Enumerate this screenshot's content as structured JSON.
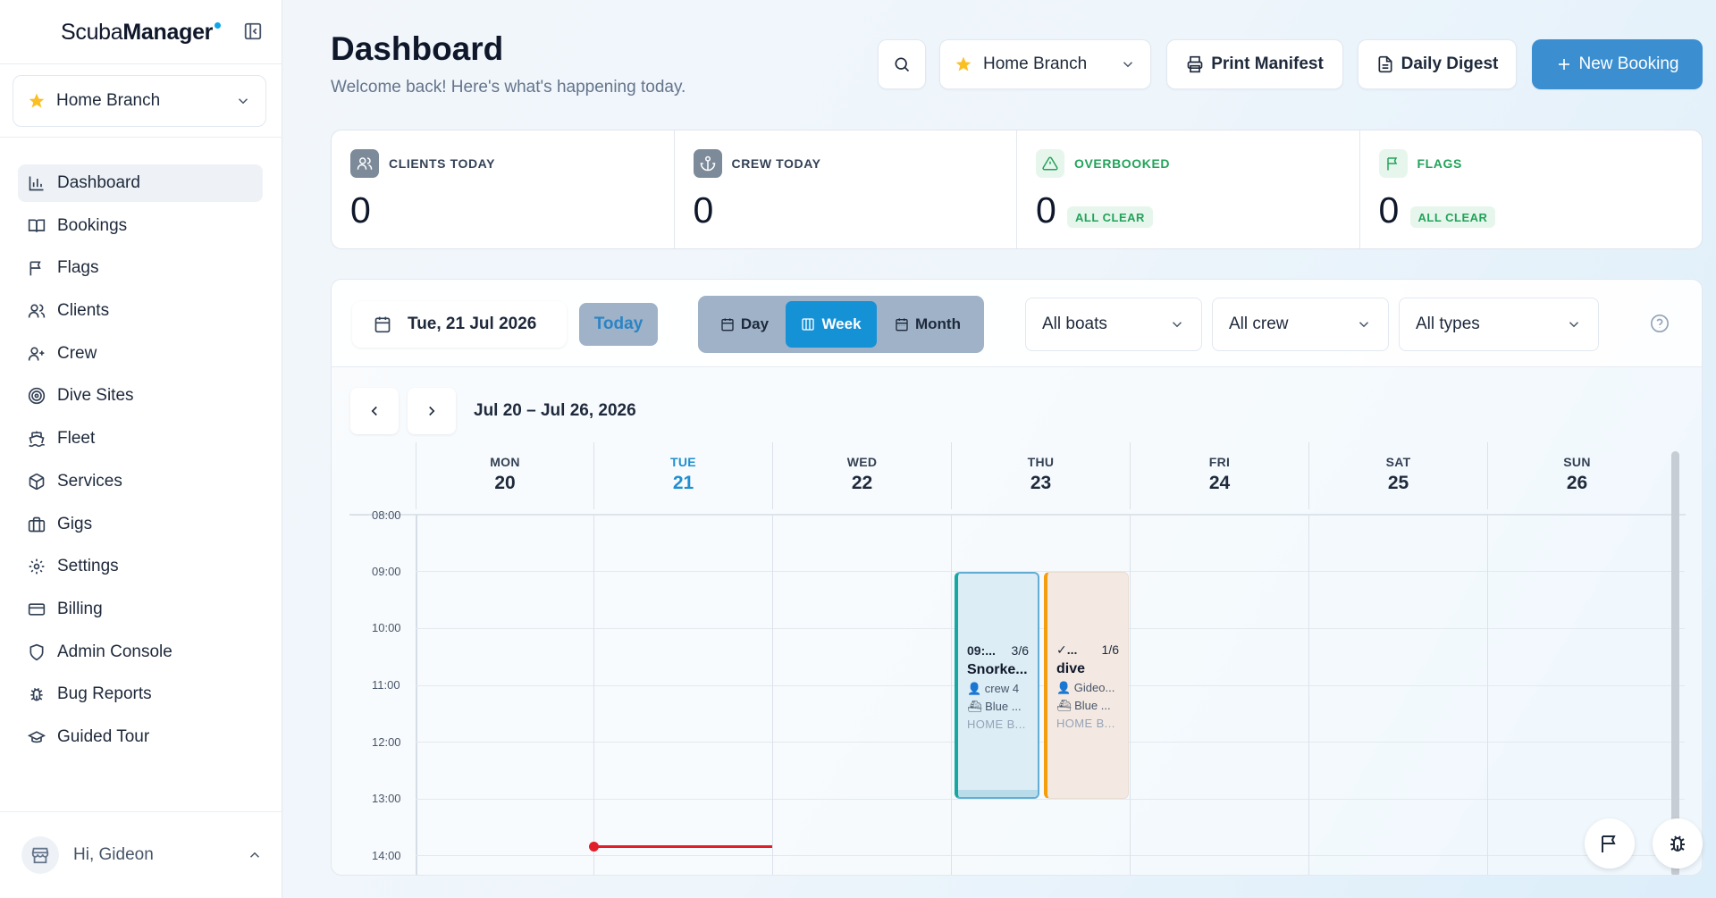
{
  "app": {
    "logo_regular": "Scuba",
    "logo_bold": "Manager"
  },
  "sidebar": {
    "branch": {
      "label": "Home Branch",
      "icon": "star-icon"
    },
    "items": [
      {
        "label": "Dashboard",
        "icon": "bar-chart-icon",
        "active": true
      },
      {
        "label": "Bookings",
        "icon": "book-icon"
      },
      {
        "label": "Flags",
        "icon": "flag-icon"
      },
      {
        "label": "Clients",
        "icon": "users-icon"
      },
      {
        "label": "Crew",
        "icon": "user-plus-icon"
      },
      {
        "label": "Dive Sites",
        "icon": "target-icon"
      },
      {
        "label": "Fleet",
        "icon": "ship-icon"
      },
      {
        "label": "Services",
        "icon": "package-icon"
      },
      {
        "label": "Gigs",
        "icon": "briefcase-icon"
      },
      {
        "label": "Settings",
        "icon": "gear-icon"
      },
      {
        "label": "Billing",
        "icon": "credit-card-icon"
      },
      {
        "label": "Admin Console",
        "icon": "shield-icon"
      },
      {
        "label": "Bug Reports",
        "icon": "bug-icon"
      },
      {
        "label": "Guided Tour",
        "icon": "graduation-cap-icon"
      }
    ],
    "user_greeting": "Hi, Gideon"
  },
  "header": {
    "title": "Dashboard",
    "subtitle": "Welcome back! Here's what's happening today.",
    "branch_label": "Home Branch",
    "print_label": "Print Manifest",
    "digest_label": "Daily Digest",
    "new_booking_label": "New Booking"
  },
  "stats": [
    {
      "label": "CLIENTS TODAY",
      "value": "0",
      "badge": ""
    },
    {
      "label": "CREW TODAY",
      "value": "0",
      "badge": ""
    },
    {
      "label": "OVERBOOKED",
      "value": "0",
      "badge": "ALL CLEAR"
    },
    {
      "label": "FLAGS",
      "value": "0",
      "badge": "ALL CLEAR"
    }
  ],
  "calendar": {
    "date_label": "Tue, 21 Jul 2026",
    "today_label": "Today",
    "views": {
      "day": "Day",
      "week": "Week",
      "month": "Month",
      "selected": "Week"
    },
    "filters": {
      "boats": "All boats",
      "crew": "All crew",
      "types": "All types"
    },
    "range_label": "Jul 20 – Jul 26, 2026",
    "days": [
      {
        "dow": "MON",
        "num": "20"
      },
      {
        "dow": "TUE",
        "num": "21",
        "today": true
      },
      {
        "dow": "WED",
        "num": "22"
      },
      {
        "dow": "THU",
        "num": "23"
      },
      {
        "dow": "FRI",
        "num": "24"
      },
      {
        "dow": "SAT",
        "num": "25"
      },
      {
        "dow": "SUN",
        "num": "26"
      }
    ],
    "times": [
      "08:00",
      "09:00",
      "10:00",
      "11:00",
      "12:00",
      "13:00",
      "14:00"
    ],
    "events": [
      {
        "time": "09:...",
        "capacity": "3/6",
        "title": "Snorke...",
        "crew": "👤 crew 4",
        "boat": "⛴ Blue ...",
        "branch": "HOME B...",
        "accent": "#17a7a0"
      },
      {
        "time": "✓...",
        "capacity": "1/6",
        "title": "dive",
        "crew": "👤 Gideo...",
        "boat": "⛴ Blue ...",
        "branch": "HOME B...",
        "accent": "#f59e0b"
      }
    ]
  },
  "colors": {
    "primary": "#3b8fd0",
    "week_selected": "#1591d6",
    "now_line": "#e11d2a",
    "ok_green": "#22a35a"
  }
}
